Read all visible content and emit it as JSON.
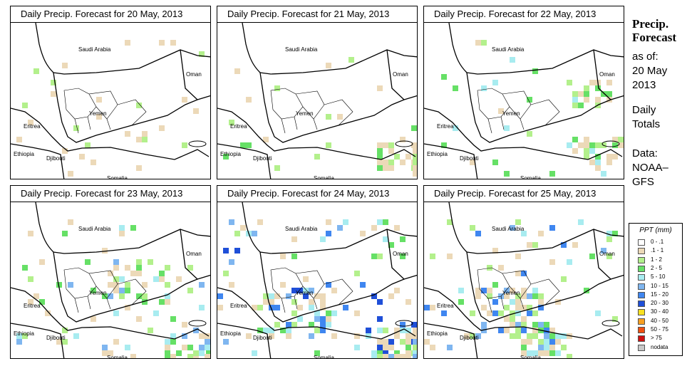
{
  "panels": [
    {
      "title": "Daily Precip. Forecast for  20 May, 2013"
    },
    {
      "title": "Daily Precip. Forecast for  21 May, 2013"
    },
    {
      "title": "Daily Precip. Forecast for  22 May, 2013"
    },
    {
      "title": "Daily Precip. Forecast for  23 May, 2013"
    },
    {
      "title": "Daily Precip. Forecast for  24 May, 2013"
    },
    {
      "title": "Daily Precip. Forecast for  25 May, 2013"
    }
  ],
  "map_labels": {
    "saudi_arabia": "Saudi Arabia",
    "oman": "Oman",
    "yemen": "Yemen",
    "eritrea": "Eritrea",
    "ethiopia": "Ethiopia",
    "djibouti": "Djibouti",
    "somalia": "Somalia"
  },
  "sidebar": {
    "title_line1": "Precip.",
    "title_line2": "Forecast",
    "asof_label": "as of:",
    "date_line1": "20 May",
    "date_line2": "2013",
    "totals_line1": "Daily",
    "totals_line2": "Totals",
    "data_line1": "Data:",
    "data_line2": "NOAA–",
    "data_line3": "GFS"
  },
  "legend": {
    "title": "PPT (mm)",
    "items": [
      {
        "label": "0 - .1",
        "color": "#ffffff"
      },
      {
        "label": ".1 - 1",
        "color": "#ecd9b8"
      },
      {
        "label": "1 - 2",
        "color": "#b3f08c"
      },
      {
        "label": "2 - 5",
        "color": "#66e066"
      },
      {
        "label": "5 - 10",
        "color": "#a8ecf0"
      },
      {
        "label": "10 - 15",
        "color": "#7fb6f0"
      },
      {
        "label": "15 - 20",
        "color": "#3f86f0"
      },
      {
        "label": "20 - 30",
        "color": "#1f4fd8"
      },
      {
        "label": "30 - 40",
        "color": "#f8e020"
      },
      {
        "label": "40 - 50",
        "color": "#f8a020"
      },
      {
        "label": "50 - 75",
        "color": "#f05010"
      },
      {
        "label": "> 75",
        "color": "#d01010"
      },
      {
        "label": "nodata",
        "color": "#c8c8c8"
      }
    ]
  }
}
